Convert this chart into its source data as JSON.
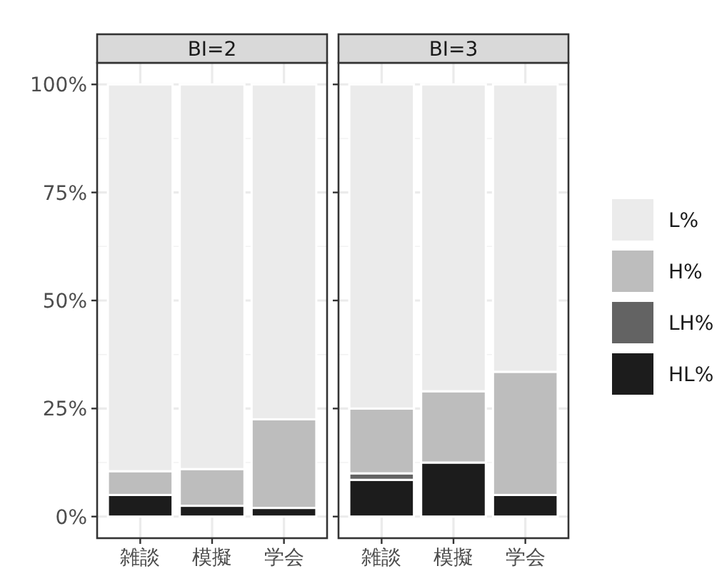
{
  "chart_data": [
    {
      "type": "bar",
      "stacked": true,
      "title": "BI=2",
      "categories": [
        "雑談",
        "模擬",
        "学会"
      ],
      "ylim": [
        -5,
        105
      ],
      "yticks": [
        {
          "value": 0,
          "label": "0%"
        },
        {
          "value": 25,
          "label": "25%"
        },
        {
          "value": 50,
          "label": "50%"
        },
        {
          "value": 75,
          "label": "75%"
        },
        {
          "value": 100,
          "label": "100%"
        }
      ],
      "grid": true,
      "series": [
        {
          "color": "#1c1c1c",
          "values": [
            5,
            2.5,
            2
          ]
        },
        {
          "color": "#636363",
          "values": [
            0,
            0,
            0
          ]
        },
        {
          "color": "#bdbdbd",
          "values": [
            5.5,
            8.5,
            20.5
          ]
        },
        {
          "color": "#ebebeb",
          "values": [
            89.5,
            89,
            77.5
          ]
        }
      ]
    },
    {
      "type": "bar",
      "stacked": true,
      "title": "BI=3",
      "categories": [
        "雑談",
        "模擬",
        "学会"
      ],
      "ylim": [
        -5,
        105
      ],
      "yticks": [
        {
          "value": 0,
          "label": null
        },
        {
          "value": 25,
          "label": null
        },
        {
          "value": 50,
          "label": null
        },
        {
          "value": 75,
          "label": null
        },
        {
          "value": 100,
          "label": null
        }
      ],
      "tick_labels": "x",
      "grid": true,
      "legend": "right",
      "series": [
        {
          "name": "HL%",
          "color": "#1c1c1c",
          "values": [
            8.5,
            12.5,
            5
          ]
        },
        {
          "name": "LH%",
          "color": "#636363",
          "values": [
            1.5,
            0,
            0
          ]
        },
        {
          "name": "H%",
          "color": "#bdbdbd",
          "values": [
            15,
            16.5,
            28.5
          ]
        },
        {
          "name": "L%",
          "color": "#ebebeb",
          "values": [
            75,
            71,
            66.5
          ]
        }
      ]
    }
  ]
}
